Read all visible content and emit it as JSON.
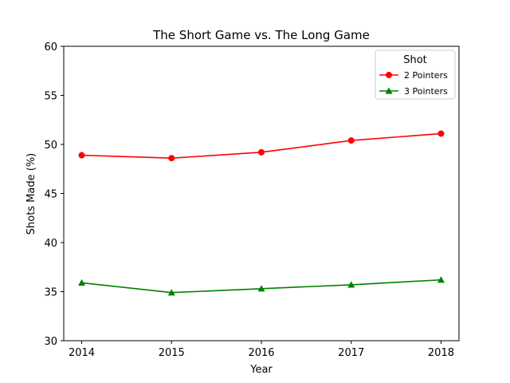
{
  "chart_data": {
    "type": "line",
    "title": "The Short Game vs. The Long Game",
    "xlabel": "Year",
    "ylabel": "Shots Made (%)",
    "x": [
      2014,
      2015,
      2016,
      2017,
      2018
    ],
    "xticks": [
      "2014",
      "2015",
      "2016",
      "2017",
      "2018"
    ],
    "ylim": [
      30,
      60
    ],
    "yticks": [
      30,
      35,
      40,
      45,
      50,
      55,
      60
    ],
    "grid": false,
    "legend": {
      "title": "Shot",
      "placement": "top-right"
    },
    "series": [
      {
        "name": "2 Pointers",
        "color": "#ff0000",
        "marker": "circle",
        "values": [
          48.9,
          48.6,
          49.2,
          50.4,
          51.1
        ]
      },
      {
        "name": "3 Pointers",
        "color": "#008000",
        "marker": "triangle",
        "values": [
          35.9,
          34.9,
          35.3,
          35.7,
          36.2
        ]
      }
    ]
  }
}
